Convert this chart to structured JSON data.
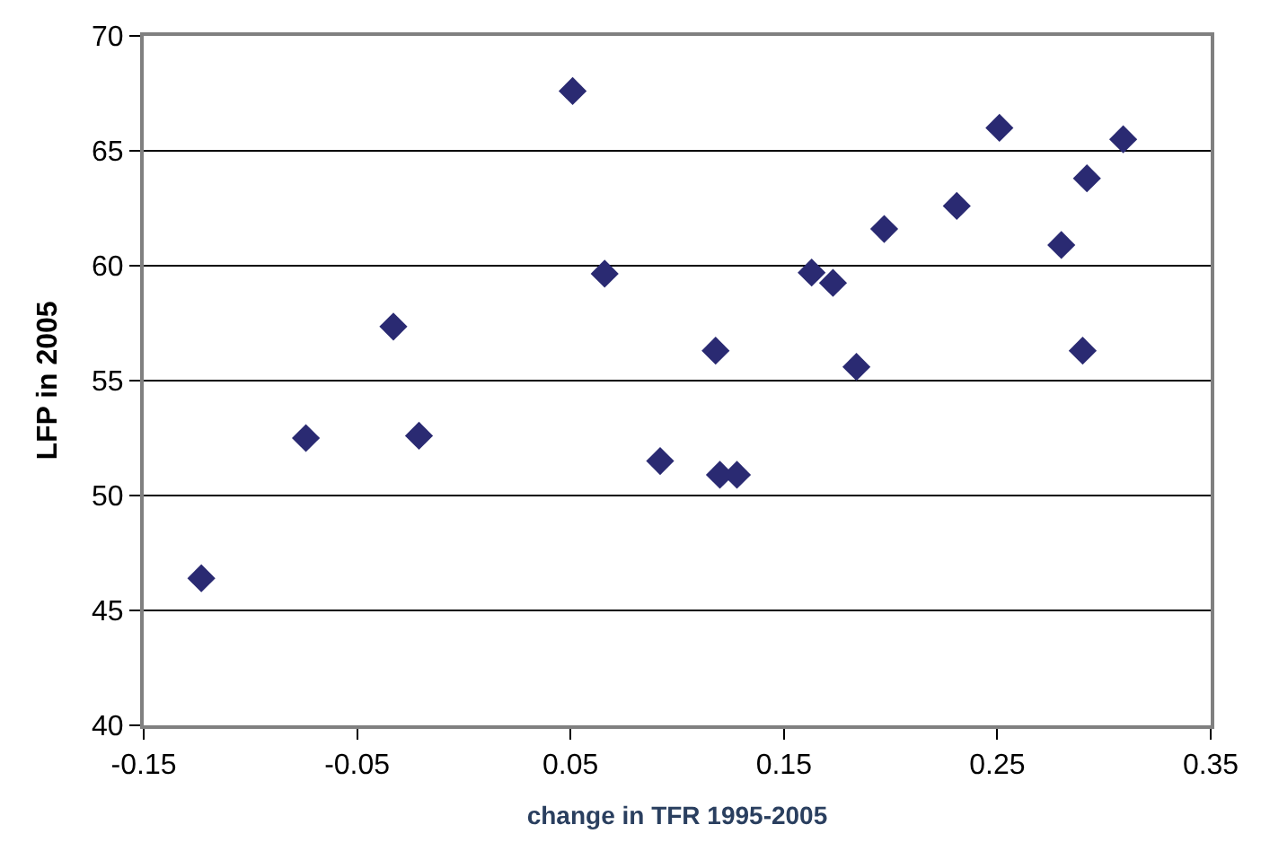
{
  "chart_data": {
    "type": "scatter",
    "xlabel": "change in TFR 1995-2005",
    "ylabel": "LFP in 2005",
    "x": [
      -0.123,
      -0.074,
      -0.033,
      -0.021,
      0.051,
      0.066,
      0.092,
      0.118,
      0.12,
      0.128,
      0.163,
      0.173,
      0.184,
      0.197,
      0.231,
      0.251,
      0.28,
      0.292,
      0.29,
      0.309
    ],
    "series": [
      {
        "color": "#2a2a72",
        "values": [
          46.4,
          52.5,
          57.35,
          52.6,
          67.6,
          59.65,
          51.5,
          56.3,
          50.9,
          50.9,
          59.7,
          59.25,
          55.6,
          61.6,
          62.6,
          66.0,
          60.9,
          63.8,
          56.3,
          65.5
        ]
      }
    ],
    "xlim": [
      -0.15,
      0.35
    ],
    "xticks": [
      -0.15,
      -0.05,
      0.05,
      0.15,
      0.25,
      0.35
    ],
    "ylim": [
      40,
      70
    ],
    "yticks": [
      40,
      45,
      50,
      55,
      60,
      65,
      70
    ],
    "grid": "y",
    "marker": "diamond",
    "legend": false
  }
}
